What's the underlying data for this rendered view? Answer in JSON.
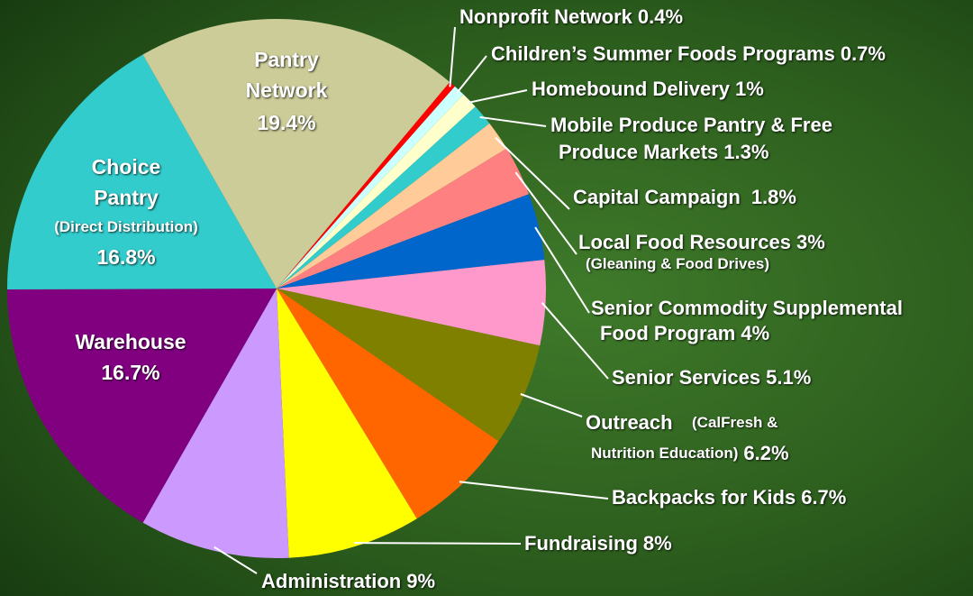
{
  "chart_data": {
    "type": "pie",
    "categories": [
      [
        "Nonprofit Network"
      ],
      [
        "Children’s Summer Foods Programs"
      ],
      [
        "Homebound Delivery"
      ],
      [
        "Mobile Produce Pantry & Free",
        "Produce Markets"
      ],
      [
        "Capital Campaign"
      ],
      [
        "Local Food Resources",
        "(Gleaning & Food Drives)"
      ],
      [
        "Senior Commodity Supplemental",
        "Food Program"
      ],
      [
        "Senior Services"
      ],
      [
        "Outreach",
        "(CalFresh  &",
        "Nutrition Education)"
      ],
      [
        "Backpacks for Kids"
      ],
      [
        "Fundraising"
      ],
      [
        "Administration"
      ],
      [
        "Warehouse"
      ],
      [
        "Choice",
        "Pantry",
        "(Direct Distribution)"
      ],
      [
        "Pantry",
        "Network"
      ]
    ],
    "values": [
      0.4,
      0.7,
      1,
      1.3,
      1.8,
      3,
      4,
      5.1,
      6.2,
      6.7,
      8,
      9,
      16.7,
      16.8,
      19.4
    ],
    "value_labels": [
      "0.4%",
      "0.7%",
      "1%",
      "1.3%",
      "1.8%",
      "3%",
      "4%",
      "5.1%",
      "6.2%",
      "6.7%",
      "8%",
      "9%",
      "16.7%",
      "16.8%",
      "19.4%"
    ],
    "colors": [
      "#ff0000",
      "#ccffff",
      "#ffffcc",
      "#33cccc",
      "#ffcc99",
      "#ff8080",
      "#0066cc",
      "#ff99cc",
      "#808000",
      "#ff6600",
      "#ffff00",
      "#cc99ff",
      "#800080",
      "#33cccc",
      "#cccc99"
    ]
  }
}
